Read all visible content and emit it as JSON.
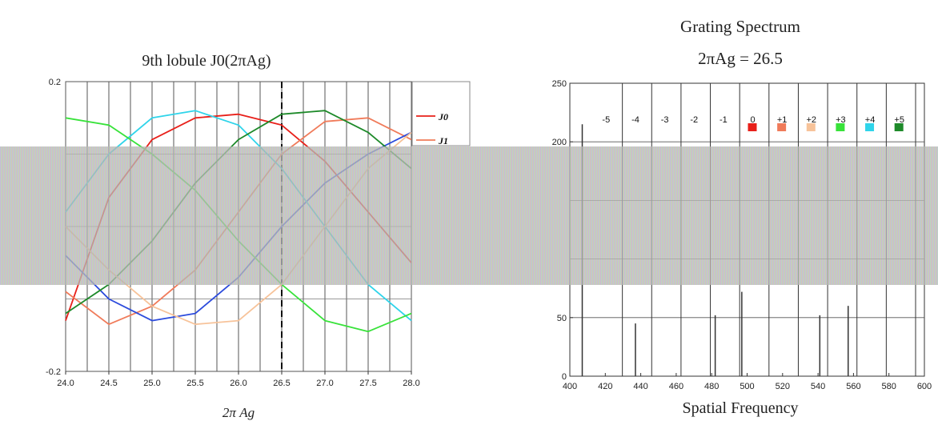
{
  "chart_data": [
    {
      "type": "line",
      "title": "9th lobule J0(2πAg)",
      "xlabel": "2π Ag",
      "ylabel": "",
      "xlim": [
        24.0,
        28.0
      ],
      "ylim": [
        -0.2,
        0.2
      ],
      "x_ticks": [
        "24.0",
        "24.5",
        "25.0",
        "25.5",
        "26.0",
        "26.5",
        "27.0",
        "27.5",
        "28.0"
      ],
      "y_ticks": [
        "0.2",
        "-0.2"
      ],
      "marker_x": 26.5,
      "legend": {
        "position": "right",
        "entries": [
          "J0",
          "J1"
        ]
      },
      "series": [
        {
          "name": "J0",
          "color": "#e8201a",
          "x": [
            24.0,
            24.5,
            25.0,
            25.5,
            26.0,
            26.5,
            27.0,
            27.5,
            28.0
          ],
          "y": [
            -0.13,
            0.04,
            0.12,
            0.15,
            0.155,
            0.14,
            0.09,
            0.02,
            -0.05
          ]
        },
        {
          "name": "J1",
          "color": "#f07b5a",
          "x": [
            24.0,
            24.5,
            25.0,
            25.5,
            26.0,
            26.5,
            27.0,
            27.5,
            28.0
          ],
          "y": [
            -0.09,
            -0.135,
            -0.11,
            -0.06,
            0.02,
            0.1,
            0.145,
            0.15,
            0.12
          ]
        },
        {
          "color": "#2c4bdc",
          "x": [
            24.0,
            24.5,
            25.0,
            25.5,
            26.0,
            26.5,
            27.0,
            27.5,
            28.0
          ],
          "y": [
            -0.04,
            -0.1,
            -0.13,
            -0.12,
            -0.07,
            0.0,
            0.06,
            0.1,
            0.13
          ]
        },
        {
          "color": "#2fd4ea",
          "x": [
            24.0,
            24.5,
            25.0,
            25.5,
            26.0,
            26.5,
            27.0,
            27.5,
            28.0
          ],
          "y": [
            0.02,
            0.1,
            0.15,
            0.16,
            0.14,
            0.08,
            0.0,
            -0.08,
            -0.13
          ]
        },
        {
          "color": "#1e8a2a",
          "x": [
            24.0,
            24.5,
            25.0,
            25.5,
            26.0,
            26.5,
            27.0,
            27.5,
            28.0
          ],
          "y": [
            -0.12,
            -0.08,
            -0.02,
            0.06,
            0.12,
            0.155,
            0.16,
            0.13,
            0.08
          ]
        },
        {
          "color": "#38e23a",
          "x": [
            24.0,
            24.5,
            25.0,
            25.5,
            26.0,
            26.5,
            27.0,
            27.5,
            28.0
          ],
          "y": [
            0.15,
            0.14,
            0.1,
            0.05,
            -0.02,
            -0.08,
            -0.13,
            -0.145,
            -0.12
          ]
        },
        {
          "color": "#f7c39a",
          "x": [
            24.0,
            24.5,
            25.0,
            25.5,
            26.0,
            26.5,
            27.0,
            27.5,
            28.0
          ],
          "y": [
            0.0,
            -0.06,
            -0.11,
            -0.135,
            -0.13,
            -0.08,
            0.0,
            0.08,
            0.13
          ]
        }
      ]
    },
    {
      "type": "bar",
      "title": "Grating Spectrum",
      "subtitle": "2πAg = 26.5",
      "xlabel": "Spatial Frequency",
      "ylabel": "",
      "xlim": [
        400,
        600
      ],
      "ylim": [
        0,
        250
      ],
      "x_ticks": [
        "400",
        "420",
        "440",
        "460",
        "480",
        "500",
        "520",
        "540",
        "560",
        "580",
        "600"
      ],
      "y_ticks": [
        "0",
        "50",
        "200",
        "250"
      ],
      "grid": true,
      "legend": {
        "position": "top",
        "entries": [
          {
            "label": "-5",
            "color": ""
          },
          {
            "label": "-4",
            "color": ""
          },
          {
            "label": "-3",
            "color": ""
          },
          {
            "label": "-2",
            "color": ""
          },
          {
            "label": "-1",
            "color": ""
          },
          {
            "label": "0",
            "color": "#e8201a"
          },
          {
            "label": "+1",
            "color": "#f07b5a"
          },
          {
            "label": "+2",
            "color": "#f7c39a"
          },
          {
            "label": "+3",
            "color": "#38e23a"
          },
          {
            "label": "+4",
            "color": "#2fd4ea"
          },
          {
            "label": "+5",
            "color": "#1e8a2a"
          }
        ]
      },
      "spikes": [
        {
          "x": 407,
          "y": 215
        },
        {
          "x": 437,
          "y": 45
        },
        {
          "x": 482,
          "y": 52
        },
        {
          "x": 497,
          "y": 72
        },
        {
          "x": 541,
          "y": 52
        },
        {
          "x": 557,
          "y": 60
        }
      ]
    }
  ]
}
